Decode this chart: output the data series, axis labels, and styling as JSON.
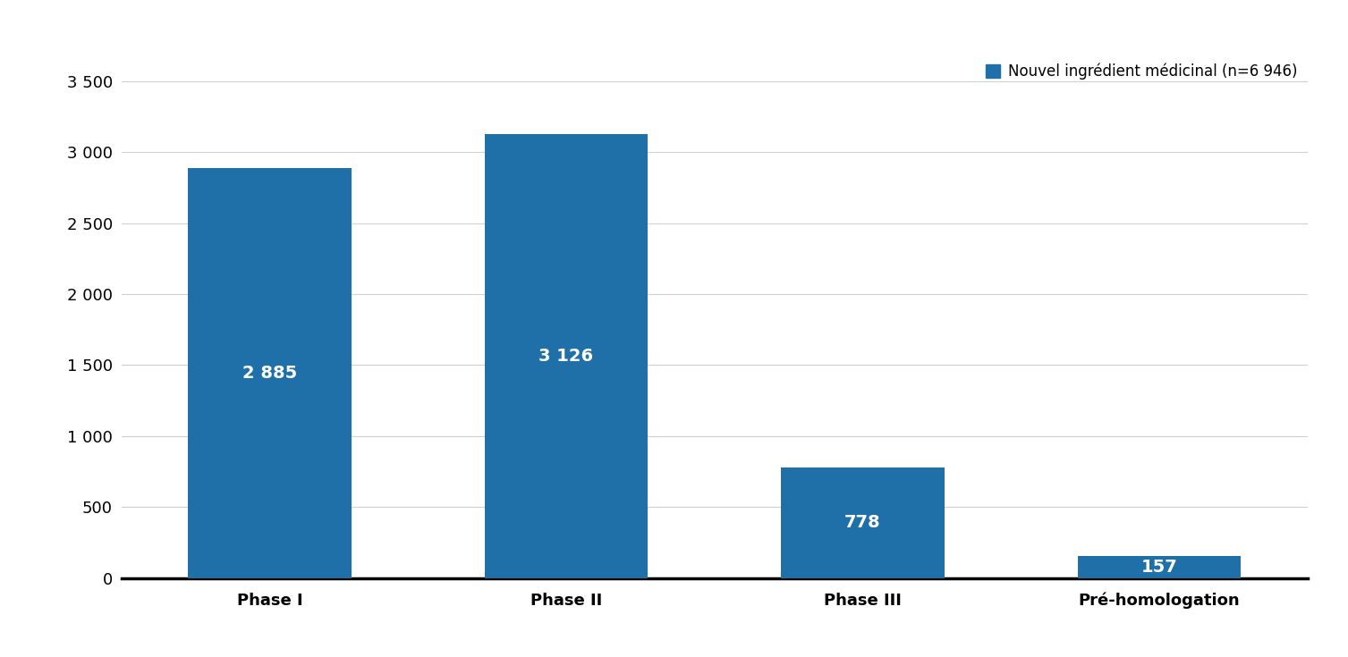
{
  "categories": [
    "Phase I",
    "Phase II",
    "Phase III",
    "Pré-homologation"
  ],
  "values": [
    2885,
    3126,
    778,
    157
  ],
  "bar_labels": [
    "2 885",
    "3 126",
    "778",
    "157"
  ],
  "bar_color": "#1f6fa8",
  "background_color": "#ffffff",
  "yticks": [
    0,
    500,
    1000,
    1500,
    2000,
    2500,
    3000,
    3500
  ],
  "ytick_labels": [
    "0",
    "500",
    "1 000",
    "1 500",
    "2 000",
    "2 500",
    "3 000",
    "3 500"
  ],
  "ylim": [
    0,
    3700
  ],
  "legend_label": "Nouvel ingrédient médicinal (n=6 946)",
  "bar_label_fontsize": 14,
  "axis_label_fontsize": 13,
  "legend_fontsize": 12,
  "tick_fontsize": 13,
  "grid_color": "#d0d0d0",
  "axis_line_color": "#000000",
  "text_color": "#ffffff",
  "xtick_color": "#000000",
  "bar_width": 0.55
}
